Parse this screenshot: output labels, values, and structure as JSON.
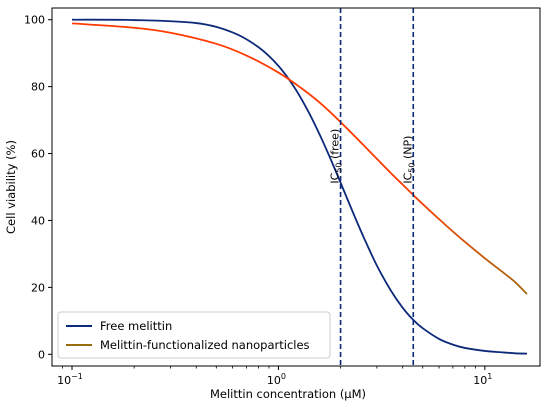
{
  "chart_data": {
    "type": "line",
    "xlabel": "Melittin concentration (µM)",
    "ylabel": "Cell viability (%)",
    "x_scale": "log",
    "xlim": [
      0.08,
      18.5
    ],
    "ylim": [
      -3.5,
      103.5
    ],
    "x_ticks": [
      {
        "value": 0.1,
        "base": "10",
        "exp": "−1"
      },
      {
        "value": 1,
        "base": "10",
        "exp": "0"
      },
      {
        "value": 10,
        "base": "10",
        "exp": "1"
      }
    ],
    "y_ticks": [
      0,
      20,
      40,
      60,
      80,
      100
    ],
    "legend_position": "lower-left",
    "series": [
      {
        "name": "Free melittin",
        "color": "#0d2a7a",
        "x": [
          0.1,
          0.2,
          0.4,
          0.6,
          0.8,
          1.0,
          1.2,
          1.4,
          1.6,
          1.8,
          2.0,
          2.3,
          2.6,
          3.0,
          3.5,
          4.0,
          4.5,
          5.0,
          6.0,
          7.0,
          8.0,
          10.0,
          12.0,
          14.0,
          16.0
        ],
        "y": [
          100,
          99.9,
          99.0,
          96.2,
          91.8,
          86.2,
          79.6,
          72.4,
          65.1,
          58.0,
          51.3,
          42.3,
          34.7,
          26.5,
          19.1,
          13.9,
          10.3,
          7.8,
          4.6,
          2.9,
          1.9,
          1.0,
          0.6,
          0.3,
          0.2
        ]
      },
      {
        "name": "Melittin-functionalized nanoparticles",
        "color": "#ff3b00",
        "color_end": "#9a6c10",
        "x": [
          0.1,
          0.2,
          0.3,
          0.5,
          0.7,
          1.0,
          1.3,
          1.6,
          2.0,
          2.5,
          3.0,
          3.5,
          4.0,
          4.5,
          5.0,
          6.0,
          7.0,
          8.0,
          10.0,
          12.0,
          14.0,
          16.0
        ],
        "y": [
          98.9,
          97.6,
          96.1,
          92.8,
          89.3,
          84.2,
          79.4,
          75.0,
          69.4,
          63.4,
          58.4,
          54.2,
          50.7,
          47.6,
          44.9,
          40.4,
          36.7,
          33.6,
          28.7,
          24.9,
          21.6,
          18.0
        ]
      }
    ],
    "vlines": [
      {
        "x": 2.0,
        "label_main": "IC",
        "label_sub": "50",
        "label_rest": " (free)",
        "color": "#0d2a7a"
      },
      {
        "x": 4.5,
        "label_main": "IC",
        "label_sub": "50",
        "label_rest": " (NP)",
        "color": "#0d2a7a"
      }
    ]
  }
}
